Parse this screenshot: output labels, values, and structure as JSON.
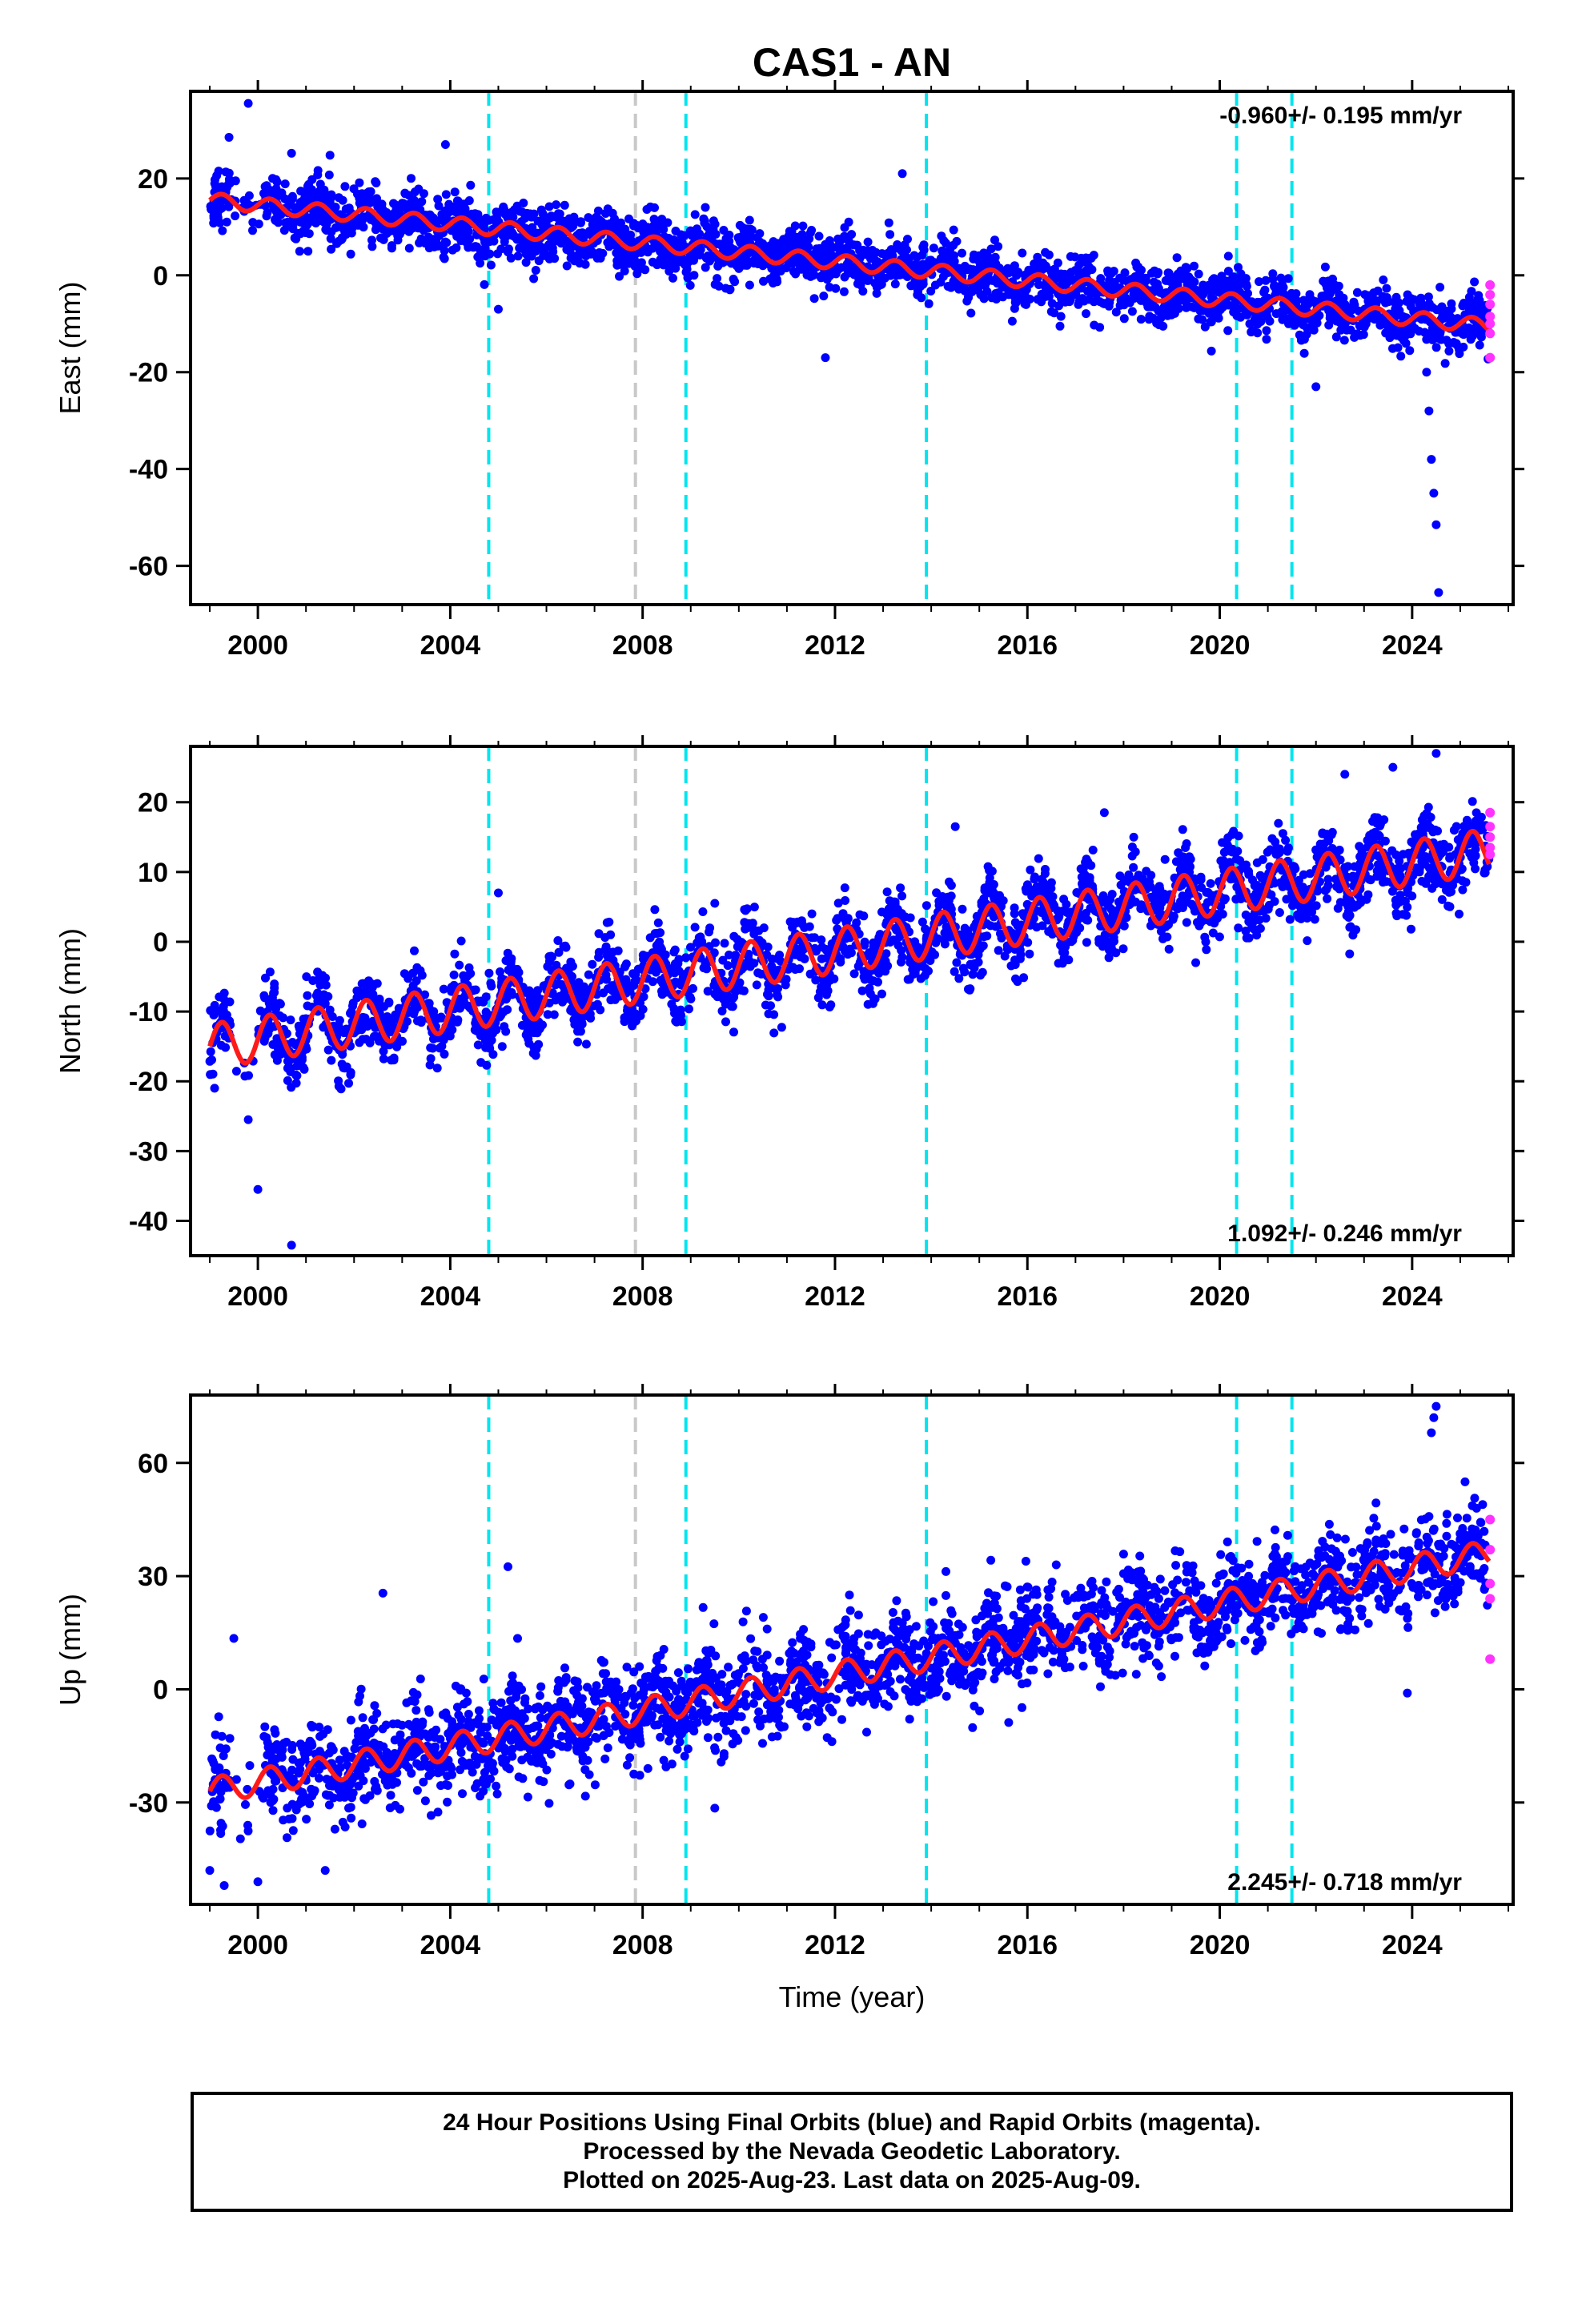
{
  "chart_data": [
    {
      "type": "scatter",
      "title": "CAS1 - AN",
      "ylabel": "East (mm)",
      "xlabel": "",
      "xlim": [
        1998.6,
        2026.1
      ],
      "ylim": [
        -68,
        38
      ],
      "xticks": [
        2000,
        2004,
        2008,
        2012,
        2016,
        2020,
        2024
      ],
      "yticks": [
        -60,
        -40,
        -20,
        0,
        20
      ],
      "rate_label": "-0.960+/- 0.195 mm/yr",
      "rate_position": "top-right",
      "trend": {
        "start": [
          1999.0,
          15.5
        ],
        "end": [
          2025.6,
          -10.5
        ],
        "annual_amplitude": 1.5
      },
      "scatter_spread": 2.8,
      "sample_points": [
        [
          1999.4,
          28.5
        ],
        [
          1999.8,
          35.5
        ],
        [
          2000.7,
          25.2
        ],
        [
          2001.5,
          24.8
        ],
        [
          2003.9,
          27.0
        ],
        [
          2005.0,
          -7.0
        ],
        [
          2010.5,
          2.0
        ],
        [
          2011.8,
          -17.0
        ],
        [
          2013.4,
          21.0
        ],
        [
          2016.5,
          -7.5
        ],
        [
          2022.0,
          -23.0
        ],
        [
          2024.3,
          -20.0
        ],
        [
          2024.35,
          -28.0
        ],
        [
          2024.4,
          -38.0
        ],
        [
          2024.45,
          -45.0
        ],
        [
          2024.5,
          -51.5
        ],
        [
          2024.55,
          -65.5
        ]
      ],
      "vertical_lines": [
        {
          "x": 2004.8,
          "color": "#00e5ee"
        },
        {
          "x": 2007.85,
          "color": "#c8c8c8"
        },
        {
          "x": 2008.9,
          "color": "#00e5ee"
        },
        {
          "x": 2013.9,
          "color": "#00e5ee"
        },
        {
          "x": 2020.35,
          "color": "#00e5ee"
        },
        {
          "x": 2021.5,
          "color": "#00e5ee"
        }
      ],
      "rapid_points": [
        [
          2025.62,
          -2.0
        ],
        [
          2025.62,
          -4.0
        ],
        [
          2025.62,
          -6.0
        ],
        [
          2025.62,
          -8.5
        ],
        [
          2025.62,
          -10.0
        ],
        [
          2025.62,
          -12.0
        ],
        [
          2025.62,
          -17.0
        ]
      ]
    },
    {
      "type": "scatter",
      "title": "",
      "ylabel": "North (mm)",
      "xlabel": "",
      "xlim": [
        1998.6,
        2026.1
      ],
      "ylim": [
        -45,
        28
      ],
      "xticks": [
        2000,
        2004,
        2008,
        2012,
        2016,
        2020,
        2024
      ],
      "yticks": [
        -40,
        -30,
        -20,
        -10,
        0,
        10,
        20
      ],
      "rate_label": "1.092+/- 0.246 mm/yr",
      "rate_position": "bottom-right",
      "trend": {
        "start": [
          1999.0,
          -15.0
        ],
        "end": [
          2025.6,
          13.0
        ],
        "annual_amplitude": 3.2
      },
      "scatter_spread": 2.6,
      "sample_points": [
        [
          1999.1,
          -21.0
        ],
        [
          1999.8,
          -25.5
        ],
        [
          2000.0,
          -35.5
        ],
        [
          2000.7,
          -43.5
        ],
        [
          2005.0,
          7.0
        ],
        [
          2009.5,
          5.5
        ],
        [
          2014.5,
          16.5
        ],
        [
          2017.6,
          18.5
        ],
        [
          2022.6,
          24.0
        ],
        [
          2023.6,
          25.0
        ],
        [
          2024.5,
          27.0
        ],
        [
          2019.5,
          -3.0
        ]
      ],
      "vertical_lines": [
        {
          "x": 2004.8,
          "color": "#00e5ee"
        },
        {
          "x": 2007.85,
          "color": "#c8c8c8"
        },
        {
          "x": 2008.9,
          "color": "#00e5ee"
        },
        {
          "x": 2013.9,
          "color": "#00e5ee"
        },
        {
          "x": 2020.35,
          "color": "#00e5ee"
        },
        {
          "x": 2021.5,
          "color": "#00e5ee"
        }
      ],
      "rapid_points": [
        [
          2025.62,
          18.5
        ],
        [
          2025.62,
          16.5
        ],
        [
          2025.62,
          15.0
        ],
        [
          2025.62,
          13.5
        ],
        [
          2025.62,
          12.5
        ]
      ]
    },
    {
      "type": "scatter",
      "title": "",
      "ylabel": "Up (mm)",
      "xlabel": "Time (year)",
      "xlim": [
        1998.6,
        2026.1
      ],
      "ylim": [
        -57,
        78
      ],
      "xticks": [
        2000,
        2004,
        2008,
        2012,
        2016,
        2020,
        2024
      ],
      "yticks": [
        -30,
        0,
        30,
        60
      ],
      "rate_label": "2.245+/- 0.718 mm/yr",
      "rate_position": "bottom-right",
      "trend": {
        "start": [
          1999.0,
          -27.0
        ],
        "end": [
          2025.6,
          36.0
        ],
        "annual_amplitude": 3.5
      },
      "scatter_spread": 6.5,
      "sample_points": [
        [
          1999.0,
          -48.0
        ],
        [
          1999.3,
          -52.0
        ],
        [
          1999.5,
          13.5
        ],
        [
          2000.0,
          -51.0
        ],
        [
          2001.4,
          -48.0
        ],
        [
          2002.6,
          25.5
        ],
        [
          2005.2,
          32.5
        ],
        [
          2005.4,
          13.5
        ],
        [
          2009.5,
          -31.5
        ],
        [
          2012.3,
          25.0
        ],
        [
          2016.6,
          33.0
        ],
        [
          2024.4,
          68.0
        ],
        [
          2024.45,
          72.0
        ],
        [
          2024.5,
          75.0
        ],
        [
          2023.9,
          -1.0
        ],
        [
          2025.1,
          55.0
        ]
      ],
      "vertical_lines": [
        {
          "x": 2004.8,
          "color": "#00e5ee"
        },
        {
          "x": 2007.85,
          "color": "#c8c8c8"
        },
        {
          "x": 2008.9,
          "color": "#00e5ee"
        },
        {
          "x": 2013.9,
          "color": "#00e5ee"
        },
        {
          "x": 2020.35,
          "color": "#00e5ee"
        },
        {
          "x": 2021.5,
          "color": "#00e5ee"
        }
      ],
      "rapid_points": [
        [
          2025.62,
          45.0
        ],
        [
          2025.62,
          37.0
        ],
        [
          2025.62,
          28.0
        ],
        [
          2025.62,
          24.0
        ],
        [
          2025.62,
          8.0
        ]
      ]
    }
  ],
  "colors": {
    "final_orbits": "#0000ff",
    "rapid_orbits": "#ff33ff",
    "model_fit": "#ff1a1a",
    "antenna_change": "#00e5ee",
    "other_event": "#c8c8c8"
  },
  "footer": {
    "line1": "24 Hour Positions Using Final Orbits (blue) and Rapid Orbits (magenta).",
    "line2": "Processed by the Nevada Geodetic Laboratory.",
    "line3": "Plotted on 2025-Aug-23. Last data on 2025-Aug-09."
  }
}
